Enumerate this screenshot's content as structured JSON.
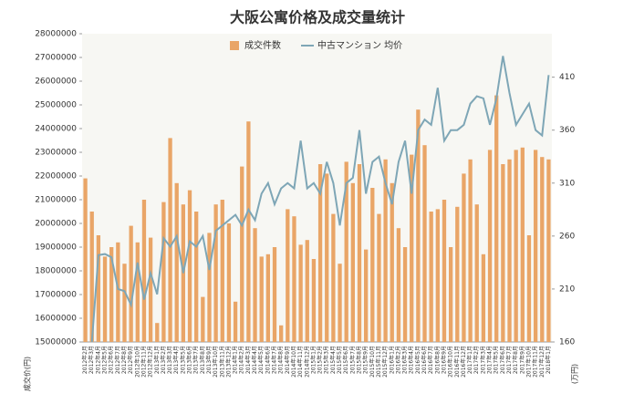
{
  "chart_data": {
    "type": "bar-line",
    "title": "大阪公寓价格及成交量统计",
    "y_label": "成交价(円)",
    "y2_label": "(万円)",
    "categories": [
      "2012年2月",
      "2012年3月",
      "2012年4月",
      "2012年5月",
      "2012年6月",
      "2012年7月",
      "2012年8月",
      "2012年9月",
      "2012年10月",
      "2012年11月",
      "2012年12月",
      "2013年1月",
      "2013年2月",
      "2013年3月",
      "2013年4月",
      "2013年5月",
      "2013年6月",
      "2013年7月",
      "2013年8月",
      "2013年9月",
      "2013年10月",
      "2013年11月",
      "2013年12月",
      "2014年1月",
      "2014年2月",
      "2014年3月",
      "2014年4月",
      "2014年5月",
      "2014年6月",
      "2014年7月",
      "2014年8月",
      "2014年9月",
      "2014年10月",
      "2014年11月",
      "2014年12月",
      "2015年1月",
      "2015年2月",
      "2015年3月",
      "2015年4月",
      "2015年5月",
      "2015年6月",
      "2015年7月",
      "2015年8月",
      "2015年9月",
      "2015年10月",
      "2015年11月",
      "2015年12月",
      "2016年1月",
      "2016年2月",
      "2016年3月",
      "2016年4月",
      "2016年5月",
      "2016年6月",
      "2016年7月",
      "2016年8月",
      "2016年9月",
      "2016年10月",
      "2016年11月",
      "2016年12月",
      "2017年1月",
      "2017年2月",
      "2017年3月",
      "2017年4月",
      "2017年5月",
      "2017年6月",
      "2017年7月",
      "2017年8月",
      "2017年9月",
      "2017年10月",
      "2017年11月",
      "2017年12月",
      "2018年1月"
    ],
    "series": [
      {
        "name": "成交件数",
        "color": "#e9a567",
        "values": [
          21900000,
          20500000,
          19500000,
          18600000,
          19000000,
          19200000,
          18300000,
          19900000,
          19200000,
          21000000,
          19400000,
          15800000,
          20900000,
          23600000,
          21700000,
          20800000,
          21400000,
          20500000,
          16900000,
          19600000,
          20800000,
          21000000,
          20000000,
          16700000,
          22400000,
          24300000,
          19800000,
          18600000,
          18700000,
          19000000,
          15700000,
          20600000,
          20300000,
          19100000,
          19300000,
          18500000,
          22500000,
          22100000,
          20400000,
          18300000,
          22600000,
          21700000,
          22500000,
          18900000,
          21500000,
          20400000,
          22700000,
          21700000,
          19800000,
          19000000,
          22900000,
          24800000,
          23300000,
          20500000,
          20600000,
          21000000,
          19000000,
          20700000,
          22100000,
          22700000,
          20800000,
          18700000,
          23100000,
          25400000,
          22500000,
          22700000,
          23100000,
          23200000,
          19500000,
          23100000,
          22800000,
          22700000
        ]
      },
      {
        "name": "中古マンション 均价",
        "color": "#7ea6b6",
        "axis": "y2",
        "values": [
          null,
          160,
          242,
          243,
          240,
          210,
          208,
          195,
          235,
          200,
          225,
          205,
          258,
          250,
          260,
          225,
          255,
          250,
          260,
          228,
          265,
          270,
          275,
          280,
          270,
          285,
          275,
          300,
          310,
          290,
          305,
          310,
          305,
          350,
          305,
          310,
          300,
          330,
          310,
          270,
          310,
          315,
          360,
          300,
          330,
          335,
          310,
          290,
          330,
          350,
          300,
          360,
          370,
          365,
          400,
          350,
          360,
          360,
          365,
          385,
          392,
          390,
          365,
          390,
          430,
          395,
          365,
          375,
          385,
          360,
          355,
          412
        ]
      }
    ],
    "ylim": [
      15000000,
      28000000
    ],
    "yticks": [
      15000000,
      16000000,
      17000000,
      18000000,
      19000000,
      20000000,
      21000000,
      22000000,
      23000000,
      24000000,
      25000000,
      26000000,
      27000000,
      28000000
    ],
    "y2lim": [
      160,
      451
    ],
    "y2ticks": [
      160,
      210,
      260,
      310,
      360,
      410
    ]
  }
}
